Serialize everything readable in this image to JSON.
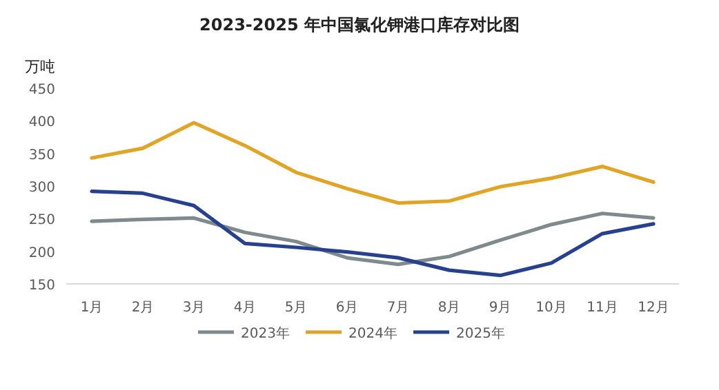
{
  "chart_data": {
    "type": "line",
    "title": "2023-2025 年中国氯化钾港口库存对比图",
    "ylabel": "万吨",
    "categories": [
      "1月",
      "2月",
      "3月",
      "4月",
      "5月",
      "6月",
      "7月",
      "8月",
      "9月",
      "10月",
      "11月",
      "12月"
    ],
    "series": [
      {
        "name": "2023年",
        "color": "#7f8a8c",
        "values": [
          246,
          249,
          251,
          229,
          215,
          190,
          180,
          192,
          217,
          241,
          258,
          251
        ]
      },
      {
        "name": "2024年",
        "color": "#e0a526",
        "values": [
          343,
          358,
          397,
          362,
          321,
          296,
          274,
          277,
          299,
          312,
          330,
          306
        ]
      },
      {
        "name": "2025年",
        "color": "#27418f",
        "values": [
          292,
          289,
          270,
          212,
          206,
          199,
          190,
          171,
          163,
          182,
          227,
          242
        ]
      }
    ],
    "ylim": [
      150,
      450
    ],
    "yticks": [
      150,
      200,
      250,
      300,
      350,
      400,
      450
    ],
    "grid": false,
    "legend": "bottom",
    "marker": "none"
  }
}
